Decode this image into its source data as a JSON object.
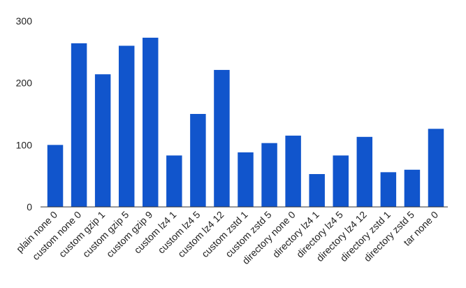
{
  "chart_data": {
    "type": "bar",
    "categories": [
      "plain none 0",
      "custom none 0",
      "custom gzip 1",
      "custom gzip 5",
      "custom gzip 9",
      "custom lz4 1",
      "custom lz4 5",
      "custom lz4 12",
      "custom zstd 1",
      "custom zstd 5",
      "directory none 0",
      "directory lz4 1",
      "directory lz4 5",
      "directory lz4 12",
      "directory zstd 1",
      "directory zstd 5",
      "tar none 0"
    ],
    "values": [
      100,
      264,
      214,
      260,
      273,
      83,
      150,
      221,
      88,
      103,
      115,
      53,
      83,
      113,
      56,
      60,
      126
    ],
    "color": "#1155cc",
    "ylim": [
      0,
      300
    ],
    "yticks": [
      0,
      100,
      200,
      300
    ],
    "grid": false
  }
}
